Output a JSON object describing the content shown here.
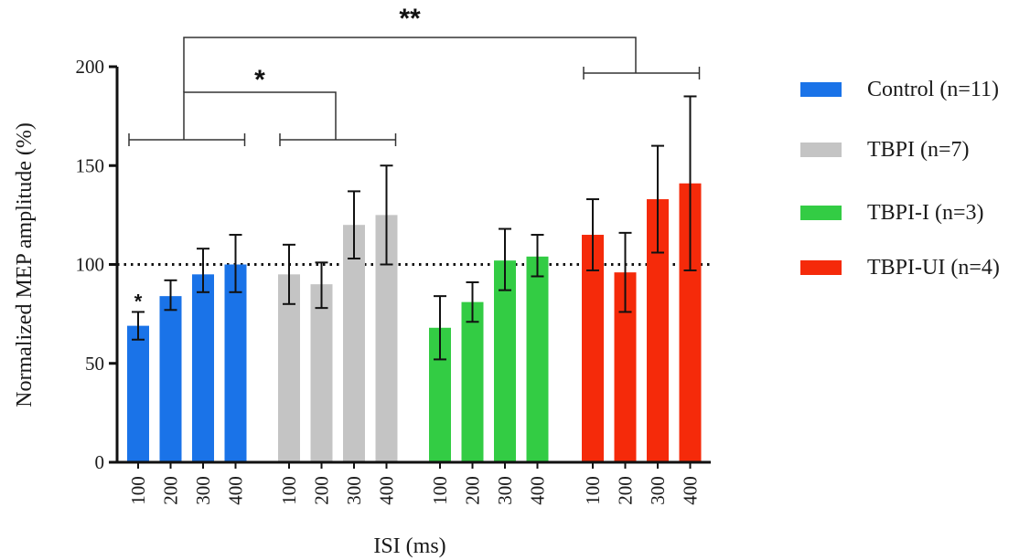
{
  "chart_data": {
    "type": "bar",
    "xlabel": "ISI (ms)",
    "ylabel": "Normalized MEP amplitude (%)",
    "ylim": [
      0,
      200
    ],
    "yticks": [
      0,
      50,
      100,
      150,
      200
    ],
    "reference_line": 100,
    "categories": [
      "100",
      "200",
      "300",
      "400"
    ],
    "legend_position": "right",
    "series": [
      {
        "name": "Control (n=11)",
        "color": "#1a73e8",
        "values": [
          69,
          84,
          95,
          100
        ],
        "err_low": [
          62,
          77,
          86,
          86
        ],
        "err_high": [
          76,
          92,
          108,
          115
        ]
      },
      {
        "name": "TBPI (n=7)",
        "color": "#c4c4c4",
        "values": [
          95,
          90,
          120,
          125
        ],
        "err_low": [
          80,
          78,
          103,
          100
        ],
        "err_high": [
          110,
          101,
          137,
          150
        ]
      },
      {
        "name": "TBPI-I (n=3)",
        "color": "#33cc44",
        "values": [
          68,
          81,
          102,
          104
        ],
        "err_low": [
          52,
          71,
          87,
          94
        ],
        "err_high": [
          84,
          91,
          118,
          115
        ]
      },
      {
        "name": "TBPI-UI (n=4)",
        "color": "#f52a0a",
        "values": [
          115,
          96,
          133,
          141
        ],
        "err_low": [
          97,
          76,
          106,
          97
        ],
        "err_high": [
          133,
          116,
          160,
          185
        ]
      }
    ],
    "annotations": {
      "bar_star": "*",
      "bracket_single": "*",
      "bracket_double": "**"
    }
  }
}
